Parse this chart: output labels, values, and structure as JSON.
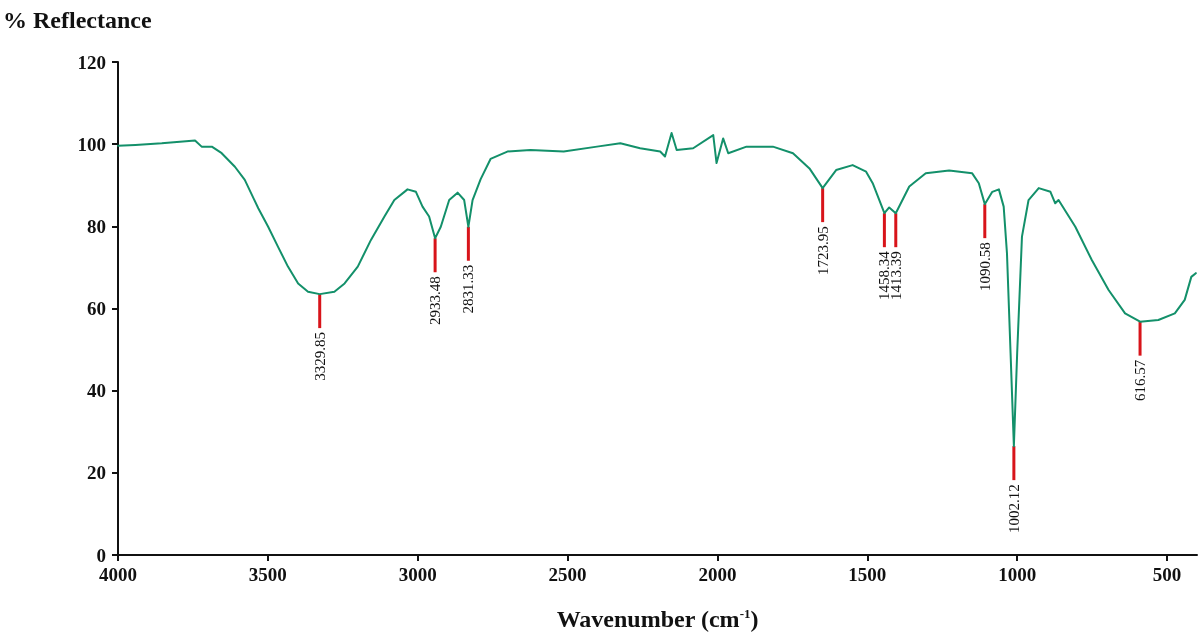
{
  "chart_data": {
    "type": "line",
    "xlabel": "Wavenumber (cm$^{-1}$)",
    "ylabel": "% Reflectance",
    "xlim": [
      4000,
      400
    ],
    "xticks": [
      4000,
      3500,
      3000,
      2500,
      2000,
      1500,
      1000,
      500
    ],
    "ylim": [
      0,
      120
    ],
    "yticks": [
      0,
      20,
      40,
      60,
      80,
      100,
      120
    ],
    "x": [
      4000,
      3942,
      3854,
      3743,
      3721,
      3687,
      3654,
      3610,
      3577,
      3532,
      3499,
      3466,
      3433,
      3399,
      3366,
      3327,
      3278,
      3244,
      3200,
      3156,
      3111,
      3078,
      3034,
      3006,
      2984,
      2962,
      2942,
      2923,
      2895,
      2867,
      2845,
      2831,
      2817,
      2790,
      2757,
      2701,
      2624,
      2513,
      2402,
      2324,
      2258,
      2191,
      2175,
      2153,
      2136,
      2081,
      2014,
      2003,
      1981,
      1964,
      1903,
      1815,
      1748,
      1693,
      1649,
      1604,
      1549,
      1504,
      1482,
      1443,
      1427,
      1405,
      1360,
      1305,
      1227,
      1150,
      1128,
      1108,
      1083,
      1061,
      1045,
      1034,
      1022,
      1011,
      1000,
      984,
      962,
      928,
      889,
      873,
      862,
      806,
      751,
      695,
      640,
      590,
      529,
      474,
      441,
      419,
      404
    ],
    "series": [
      {
        "color": "#13906a",
        "values": [
          99.6,
          99.8,
          100.2,
          100.9,
          99.4,
          99.4,
          97.8,
          94.5,
          91.3,
          84.4,
          79.9,
          75.0,
          70.2,
          66.1,
          64.1,
          63.5,
          64.1,
          66.1,
          70.2,
          76.7,
          82.4,
          86.4,
          89.0,
          88.4,
          84.8,
          82.4,
          77.1,
          79.9,
          86.4,
          88.2,
          86.4,
          79.9,
          86.4,
          91.5,
          96.4,
          98.2,
          98.6,
          98.2,
          99.4,
          100.2,
          99.0,
          98.2,
          97.0,
          102.7,
          98.6,
          99.0,
          102.2,
          95.4,
          101.4,
          97.8,
          99.4,
          99.4,
          97.8,
          94.1,
          89.3,
          93.7,
          94.9,
          93.3,
          90.5,
          83.2,
          84.6,
          83.2,
          89.7,
          92.9,
          93.6,
          92.9,
          90.5,
          85.4,
          88.4,
          89.0,
          84.8,
          73.4,
          49.1,
          26.5,
          49.1,
          77.5,
          86.4,
          89.3,
          88.4,
          85.6,
          86.4,
          79.9,
          71.8,
          64.5,
          58.8,
          56.8,
          57.2,
          58.8,
          62.1,
          67.7,
          68.6
        ]
      }
    ],
    "annotations": [
      {
        "text": "3329.85",
        "x": 3327,
        "y": 63.5
      },
      {
        "text": "2933.48",
        "x": 2942,
        "y": 77.1
      },
      {
        "text": "2831.33",
        "x": 2831,
        "y": 79.9
      },
      {
        "text": "1723.95",
        "x": 1649,
        "y": 89.3
      },
      {
        "text": "1458.34",
        "x": 1443,
        "y": 83.2
      },
      {
        "text": "1413.39",
        "x": 1405,
        "y": 83.2
      },
      {
        "text": "1090.58",
        "x": 1108,
        "y": 85.4
      },
      {
        "text": "1002.12",
        "x": 1011,
        "y": 26.5
      },
      {
        "text": "616.57",
        "x": 590,
        "y": 56.8
      }
    ]
  }
}
